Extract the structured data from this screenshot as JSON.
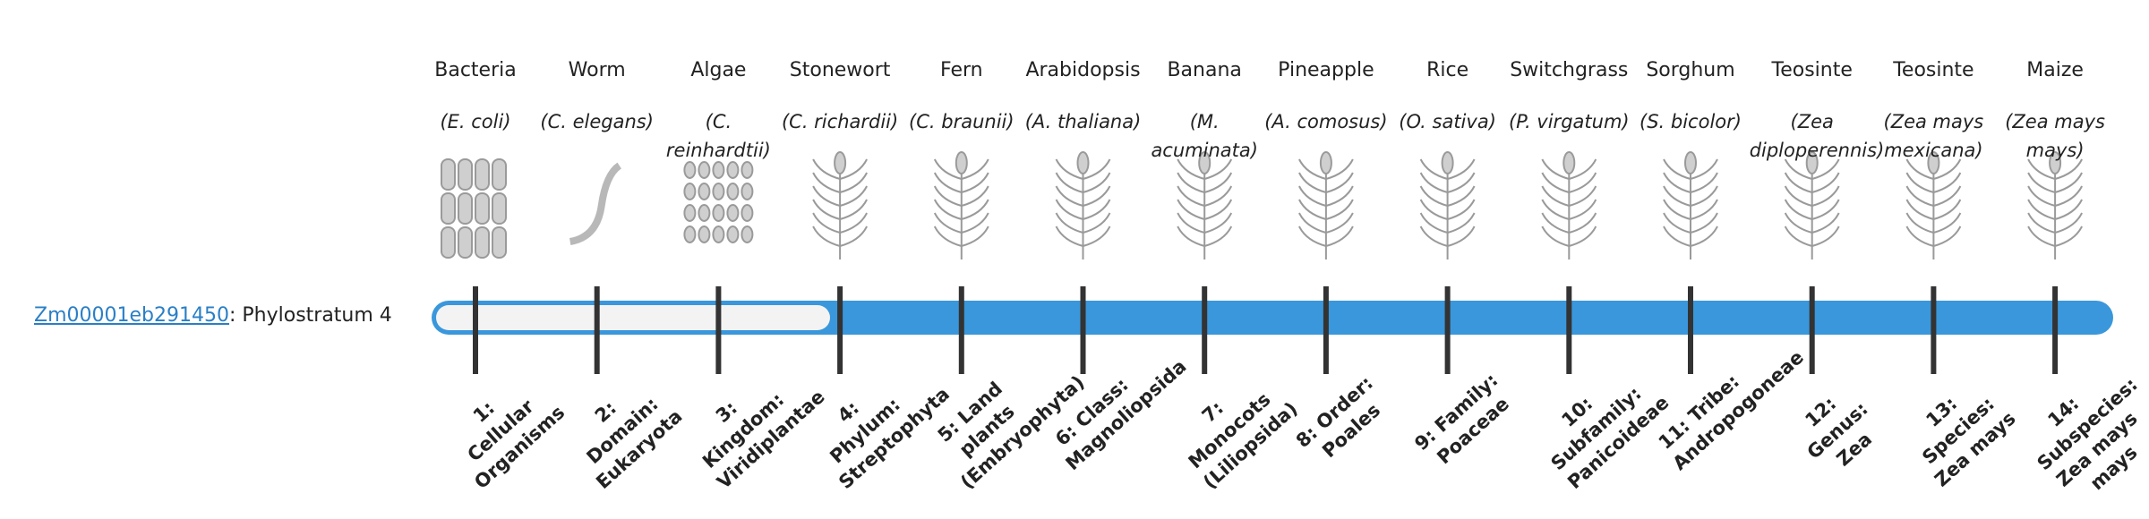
{
  "gene": {
    "id": "Zm00001eb291450",
    "suffix": ": Phylostratum 4"
  },
  "strata": [
    {
      "organism": "Bacteria",
      "species": "(E. coli)",
      "label": "1: Cellular Organisms"
    },
    {
      "organism": "Worm",
      "species": "(C. elegans)",
      "label": "2: Domain: Eukaryota"
    },
    {
      "organism": "Algae",
      "species": "(C. reinhardtii)",
      "label": "3: Kingdom: Viridiplantae"
    },
    {
      "organism": "Stonewort",
      "species": "(C. richardii)",
      "label": "4: Phylum: Streptophyta"
    },
    {
      "organism": "Fern",
      "species": "(C. braunii)",
      "label": "5: Land plants (Embryophyta)"
    },
    {
      "organism": "Arabidopsis",
      "species": "(A. thaliana)",
      "label": "6: Class: Magnoliopsida"
    },
    {
      "organism": "Banana",
      "species": "(M. acuminata)",
      "label": "7: Monocots (Liliopsida)"
    },
    {
      "organism": "Pineapple",
      "species": "(A. comosus)",
      "label": "8: Order: Poales"
    },
    {
      "organism": "Rice",
      "species": "(O. sativa)",
      "label": "9: Family: Poaceae"
    },
    {
      "organism": "Switchgrass",
      "species": "(P. virgatum)",
      "label": "10: Subfamily: Panicoideae"
    },
    {
      "organism": "Sorghum",
      "species": "(S. bicolor)",
      "label": "11: Tribe: Andropogoneae"
    },
    {
      "organism": "Teosinte",
      "species": "(Zea diploperennis)",
      "label": "12: Genus: Zea"
    },
    {
      "organism": "Teosinte",
      "species": "(Zea mays mexicana)",
      "label": "13: Species: Zea mays"
    },
    {
      "organism": "Maize",
      "species": "(Zea mays mays)",
      "label": "14: Subspecies: Zea mays mays"
    }
  ]
}
